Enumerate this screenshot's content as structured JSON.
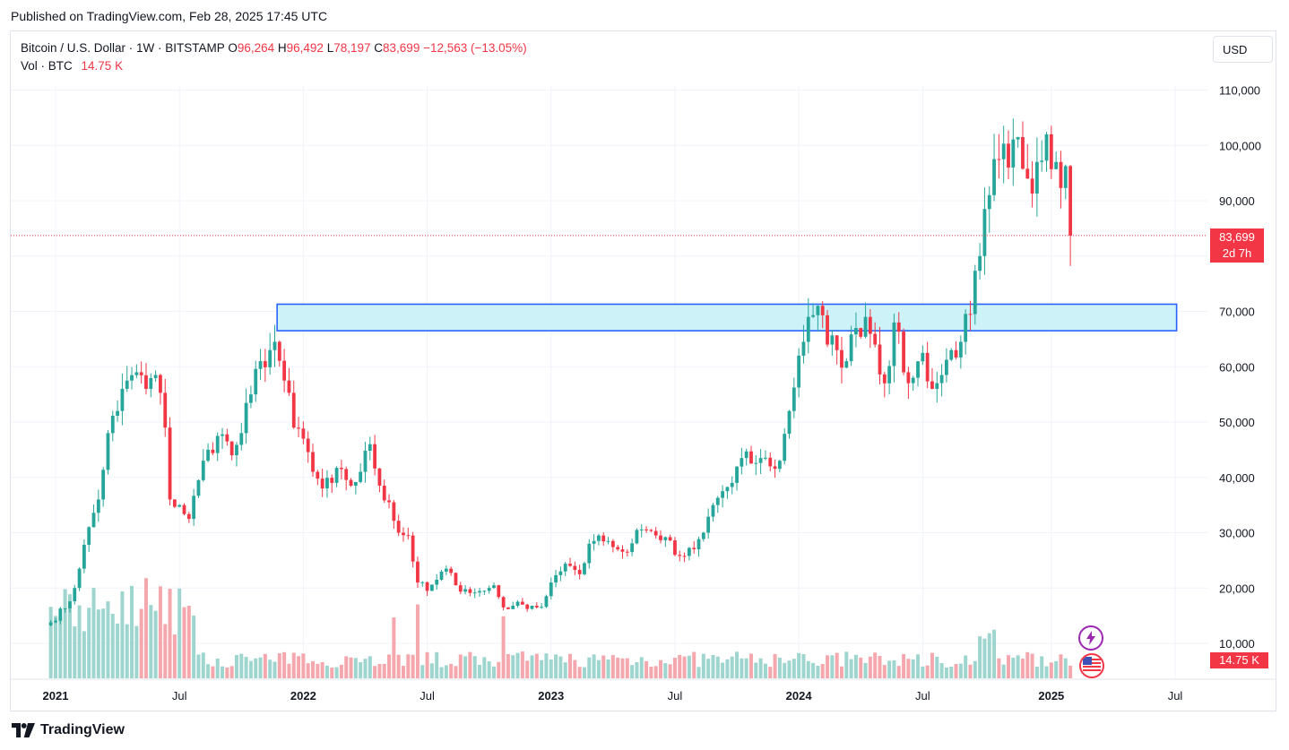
{
  "header": {
    "published": "Published on TradingView.com, Feb 28, 2025 17:45 UTC"
  },
  "legend": {
    "symbol": "Bitcoin / U.S. Dollar · 1W · BITSTAMP",
    "open_label": "O",
    "open": "96,264",
    "high_label": "H",
    "high": "96,492",
    "low_label": "L",
    "low": "78,197",
    "close_label": "C",
    "close": "83,699",
    "change": "−12,563 (−13.05%)",
    "vol_label": "Vol · BTC",
    "vol_value": "14.75 K"
  },
  "currency": "USD",
  "price_tag": {
    "price": "83,699",
    "countdown": "2d 7h"
  },
  "vol_tag": "14.75 K",
  "footer": {
    "brand": "TradingView"
  },
  "colors": {
    "up": "#26a69a",
    "down": "#f23645",
    "up_vol": "#9ed6cf",
    "down_vol": "#f5a7ae",
    "zone_fill": "#cdf2f7",
    "zone_stroke": "#2962ff"
  },
  "icons": {
    "bolt": "bolt-icon",
    "flag": "us-flag-icon"
  },
  "chart_data": {
    "type": "candlestick",
    "interval": "1W",
    "y_axis": {
      "ticks": [
        10000,
        20000,
        30000,
        40000,
        50000,
        60000,
        70000,
        80000,
        90000,
        100000,
        110000
      ],
      "tick_labels": [
        "10,000",
        "20,000",
        "30,000",
        "40,000",
        "50,000",
        "60,000",
        "70,000",
        "",
        "90,000",
        "100,000",
        "110,000"
      ],
      "range": [
        4000,
        114000
      ],
      "position": "right"
    },
    "x_axis": {
      "tick_labels": [
        "2021",
        "Jul",
        "2022",
        "Jul",
        "2023",
        "Jul",
        "2024",
        "Jul",
        "2025",
        "Jul"
      ],
      "tick_weeks": [
        0,
        26,
        52,
        78,
        104,
        130,
        156,
        182,
        209,
        235
      ]
    },
    "last_price": 83699,
    "support_zone": {
      "low": 66500,
      "high": 71300,
      "from_week": 46.5,
      "to_week": 235.3
    },
    "anchors": [
      {
        "week": -1,
        "price": 13800
      },
      {
        "week": 3,
        "price": 17600
      },
      {
        "week": 5,
        "price": 23500
      },
      {
        "week": 7,
        "price": 31000
      },
      {
        "week": 9,
        "price": 36000
      },
      {
        "week": 11,
        "price": 48000
      },
      {
        "week": 13,
        "price": 52000
      },
      {
        "week": 15,
        "price": 57500
      },
      {
        "week": 17,
        "price": 59000
      },
      {
        "week": 19,
        "price": 56000
      },
      {
        "week": 21,
        "price": 58500
      },
      {
        "week": 23,
        "price": 49000
      },
      {
        "week": 24,
        "price": 36000
      },
      {
        "week": 26,
        "price": 35000
      },
      {
        "week": 28,
        "price": 32500
      },
      {
        "week": 30,
        "price": 39500
      },
      {
        "week": 32,
        "price": 45000
      },
      {
        "week": 34,
        "price": 47500
      },
      {
        "week": 36,
        "price": 46500
      },
      {
        "week": 37,
        "price": 44000
      },
      {
        "week": 39,
        "price": 48000
      },
      {
        "week": 41,
        "price": 55000
      },
      {
        "week": 43,
        "price": 61000
      },
      {
        "week": 45,
        "price": 63000
      },
      {
        "week": 46,
        "price": 64500
      },
      {
        "week": 48,
        "price": 57500
      },
      {
        "week": 50,
        "price": 49000
      },
      {
        "week": 52,
        "price": 47000
      },
      {
        "week": 54,
        "price": 41000
      },
      {
        "week": 56,
        "price": 38000
      },
      {
        "week": 58,
        "price": 39000
      },
      {
        "week": 60,
        "price": 41500
      },
      {
        "week": 62,
        "price": 38500
      },
      {
        "week": 64,
        "price": 41000
      },
      {
        "week": 66,
        "price": 46000
      },
      {
        "week": 68,
        "price": 38500
      },
      {
        "week": 70,
        "price": 35500
      },
      {
        "week": 72,
        "price": 30000
      },
      {
        "week": 74,
        "price": 29500
      },
      {
        "week": 76,
        "price": 21000
      },
      {
        "week": 78,
        "price": 19500
      },
      {
        "week": 80,
        "price": 21500
      },
      {
        "week": 82,
        "price": 23500
      },
      {
        "week": 84,
        "price": 20500
      },
      {
        "week": 86,
        "price": 19800
      },
      {
        "week": 88,
        "price": 19200
      },
      {
        "week": 90,
        "price": 19500
      },
      {
        "week": 92,
        "price": 20500
      },
      {
        "week": 94,
        "price": 16500
      },
      {
        "week": 96,
        "price": 16800
      },
      {
        "week": 98,
        "price": 17000
      },
      {
        "week": 100,
        "price": 16800
      },
      {
        "week": 102,
        "price": 16600
      },
      {
        "week": 104,
        "price": 21000
      },
      {
        "week": 106,
        "price": 23000
      },
      {
        "week": 108,
        "price": 24000
      },
      {
        "week": 110,
        "price": 22500
      },
      {
        "week": 112,
        "price": 28000
      },
      {
        "week": 114,
        "price": 29500
      },
      {
        "week": 116,
        "price": 28500
      },
      {
        "week": 118,
        "price": 27000
      },
      {
        "week": 120,
        "price": 26500
      },
      {
        "week": 122,
        "price": 30500
      },
      {
        "week": 124,
        "price": 30500
      },
      {
        "week": 126,
        "price": 29500
      },
      {
        "week": 128,
        "price": 29200
      },
      {
        "week": 130,
        "price": 26000
      },
      {
        "week": 132,
        "price": 25800
      },
      {
        "week": 134,
        "price": 27000
      },
      {
        "week": 136,
        "price": 30000
      },
      {
        "week": 138,
        "price": 35000
      },
      {
        "week": 140,
        "price": 37500
      },
      {
        "week": 142,
        "price": 39000
      },
      {
        "week": 144,
        "price": 43500
      },
      {
        "week": 146,
        "price": 42500
      },
      {
        "week": 148,
        "price": 43500
      },
      {
        "week": 150,
        "price": 42000
      },
      {
        "week": 152,
        "price": 43000
      },
      {
        "week": 154,
        "price": 52000
      },
      {
        "week": 156,
        "price": 62000
      },
      {
        "week": 158,
        "price": 69000
      },
      {
        "week": 160,
        "price": 71000
      },
      {
        "week": 162,
        "price": 64000
      },
      {
        "week": 164,
        "price": 63000
      },
      {
        "week": 166,
        "price": 61000
      },
      {
        "week": 168,
        "price": 67000
      },
      {
        "week": 170,
        "price": 69000
      },
      {
        "week": 172,
        "price": 64000
      },
      {
        "week": 174,
        "price": 57000
      },
      {
        "week": 176,
        "price": 68000
      },
      {
        "week": 178,
        "price": 59000
      },
      {
        "week": 180,
        "price": 58000
      },
      {
        "week": 182,
        "price": 62500
      },
      {
        "week": 184,
        "price": 56000
      },
      {
        "week": 186,
        "price": 58500
      },
      {
        "week": 188,
        "price": 63000
      },
      {
        "week": 190,
        "price": 64500
      },
      {
        "week": 192,
        "price": 69500
      },
      {
        "week": 194,
        "price": 80000
      },
      {
        "week": 196,
        "price": 91000
      },
      {
        "week": 198,
        "price": 97500
      },
      {
        "week": 200,
        "price": 96000
      },
      {
        "week": 202,
        "price": 101500
      },
      {
        "week": 204,
        "price": 94000
      },
      {
        "week": 206,
        "price": 97000
      },
      {
        "week": 208,
        "price": 102000
      },
      {
        "week": 210,
        "price": 97000
      },
      {
        "week": 212,
        "price": 96264
      },
      {
        "week": 213,
        "price": 83699
      }
    ]
  }
}
